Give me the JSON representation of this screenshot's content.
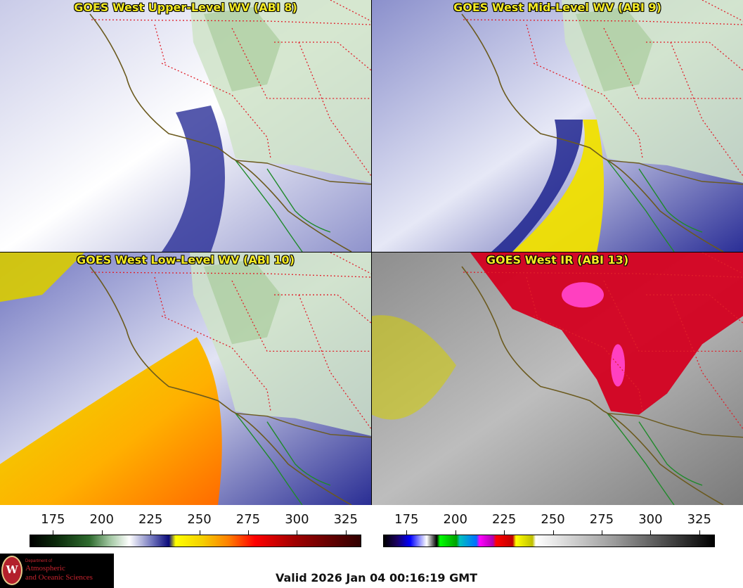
{
  "panels": [
    {
      "title": "GOES West Upper-Level WV (ABI 8)",
      "scheme": "wv_upper"
    },
    {
      "title": "GOES West Mid-Level WV (ABI 9)",
      "scheme": "wv_mid"
    },
    {
      "title": "GOES West Low-Level WV (ABI 10)",
      "scheme": "wv_low"
    },
    {
      "title": "GOES West IR (ABI 13)",
      "scheme": "ir"
    }
  ],
  "colorbars": [
    {
      "name": "water-vapor",
      "ticks": [
        "175",
        "200",
        "225",
        "250",
        "275",
        "300",
        "325"
      ],
      "range": [
        163,
        333
      ]
    },
    {
      "name": "infrared",
      "ticks": [
        "175",
        "200",
        "225",
        "250",
        "275",
        "300",
        "325"
      ],
      "range": [
        163,
        333
      ]
    }
  ],
  "logo": {
    "dept": "Department of",
    "line1": "Atmospheric",
    "line2": "and Oceanic Sciences",
    "seal_letter": "W"
  },
  "footer": {
    "valid": "Valid 2026 Jan 04 00:16:19 GMT"
  },
  "colors": {
    "coast": "#6b5a1e",
    "state_border": "#e0202a",
    "mexico_coast": "#1f8a2a",
    "title": "#f4ea23"
  }
}
